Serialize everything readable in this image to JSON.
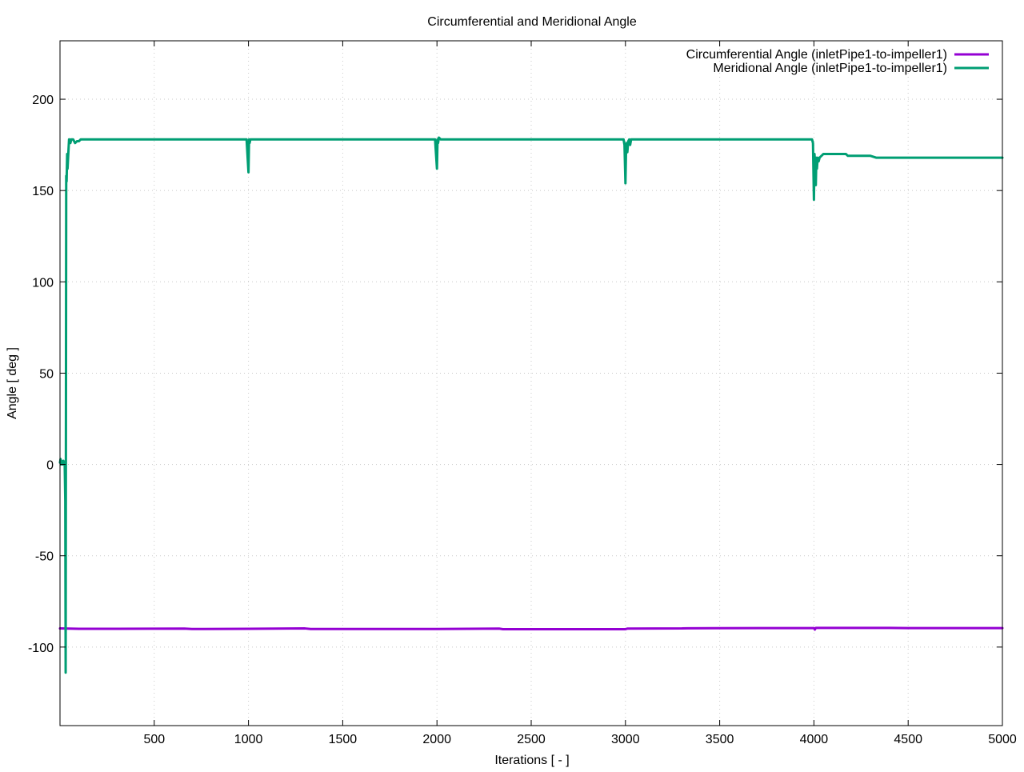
{
  "chart_data": {
    "type": "line",
    "title": "Circumferential and Meridional Angle",
    "xlabel": "Iterations [ - ]",
    "ylabel": "Angle [ deg ]",
    "xlim": [
      0,
      5000
    ],
    "ylim": [
      -143,
      232
    ],
    "x_ticks": [
      500,
      1000,
      1500,
      2000,
      2500,
      3000,
      3500,
      4000,
      4500,
      5000
    ],
    "y_ticks": [
      -100,
      -50,
      0,
      50,
      100,
      150,
      200
    ],
    "grid": true,
    "legend_position": "top-right",
    "series": [
      {
        "name": "Circumferential Angle (inletPipe1-to-impeller1)",
        "color": "#9400d3",
        "x": [
          0,
          50,
          100,
          300,
          660,
          700,
          1000,
          1300,
          1330,
          1700,
          2000,
          2330,
          2350,
          3000,
          3010,
          3300,
          3330,
          3700,
          4000,
          4005,
          4010,
          4100,
          4400,
          4500,
          5000
        ],
        "y": [
          -89.8,
          -89.9,
          -90.0,
          -90.0,
          -89.9,
          -90.1,
          -90.0,
          -89.8,
          -90.1,
          -90.1,
          -90.1,
          -89.9,
          -90.2,
          -90.2,
          -89.9,
          -89.8,
          -89.7,
          -89.6,
          -89.6,
          -90.4,
          -89.5,
          -89.5,
          -89.5,
          -89.6,
          -89.6
        ]
      },
      {
        "name": "Meridional Angle (inletPipe1-to-impeller1)",
        "color": "#009e73",
        "x": [
          0,
          3,
          5,
          8,
          12,
          15,
          18,
          22,
          25,
          28,
          30,
          33,
          35,
          38,
          40,
          45,
          48,
          52,
          55,
          60,
          70,
          80,
          90,
          100,
          110,
          150,
          200,
          400,
          600,
          800,
          990,
          1000,
          1003,
          1006,
          1010,
          1100,
          1400,
          1700,
          1990,
          2000,
          2003,
          2006,
          2010,
          2020,
          2100,
          2400,
          2700,
          2990,
          2995,
          3000,
          3003,
          3006,
          3010,
          3015,
          3020,
          3025,
          3030,
          3100,
          3400,
          3700,
          3990,
          3995,
          4000,
          4003,
          4006,
          4010,
          4013,
          4016,
          4020,
          4025,
          4030,
          4040,
          4050,
          4060,
          4080,
          4100,
          4150,
          4170,
          4180,
          4200,
          4250,
          4300,
          4330,
          4350,
          4500,
          4700,
          5000
        ],
        "y": [
          1,
          3,
          0,
          2,
          1,
          0,
          2,
          1,
          0,
          -20,
          -114,
          158,
          155,
          170,
          162,
          172,
          178,
          178,
          176,
          178,
          178,
          176,
          177,
          177,
          178,
          178,
          178,
          178,
          178,
          178,
          178,
          160,
          178,
          176,
          178,
          178,
          178,
          178,
          178,
          162,
          178,
          176,
          179,
          178,
          178,
          178,
          178,
          178,
          175,
          154,
          171,
          176,
          171,
          177,
          178,
          175,
          178,
          178,
          178,
          178,
          178,
          176,
          145,
          170,
          165,
          153,
          168,
          162,
          168,
          166,
          168,
          169,
          170,
          170,
          170,
          170,
          170,
          170,
          169,
          169,
          169,
          169,
          168,
          168,
          168,
          168,
          168
        ]
      }
    ]
  }
}
